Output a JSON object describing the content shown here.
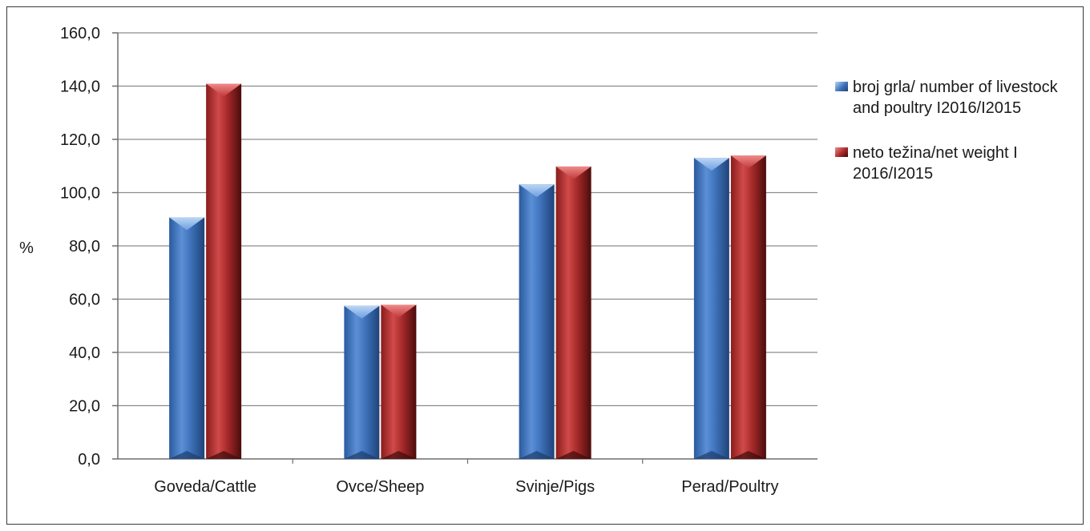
{
  "chart_data": {
    "type": "bar",
    "categories": [
      "Goveda/Cattle",
      "Ovce/Sheep",
      "Svinje/Pigs",
      "Perad/Poultry"
    ],
    "series": [
      {
        "name": "broj grla/ number of livestock and poultry I2016/I2015",
        "values": [
          90.7,
          57.5,
          103.1,
          113.0
        ],
        "color": "#3d6fb4"
      },
      {
        "name": "neto težina/net weight I 2016/I2015",
        "values": [
          140.9,
          57.9,
          109.8,
          113.9
        ],
        "color": "#a52a2a"
      }
    ],
    "ylabel": "%",
    "ylim": [
      0,
      160
    ],
    "yticks": [
      "0,0",
      "20,0",
      "40,0",
      "60,0",
      "80,0",
      "100,0",
      "120,0",
      "140,0",
      "160,0"
    ],
    "grid": true,
    "legend_position": "right"
  }
}
